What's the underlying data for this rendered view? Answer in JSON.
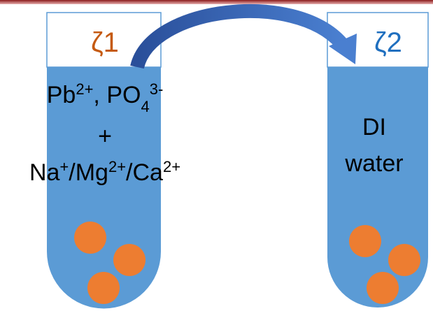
{
  "left_tube": {
    "label": "ζ1",
    "label_color": "#c55a11",
    "lines": [
      [
        {
          "text": "Pb"
        },
        {
          "text": "2+",
          "style": "sup"
        },
        {
          "text": ", PO"
        },
        {
          "text": "4",
          "style": "sub"
        },
        {
          "text": "3-",
          "style": "sup"
        }
      ],
      [
        {
          "text": "+"
        }
      ],
      [
        {
          "text": "Na"
        },
        {
          "text": "+",
          "style": "sup"
        },
        {
          "text": "/Mg"
        },
        {
          "text": "2+",
          "style": "sup"
        },
        {
          "text": "/Ca"
        },
        {
          "text": "2+",
          "style": "sup"
        }
      ]
    ]
  },
  "right_tube": {
    "label": "ζ2",
    "label_color": "#1f6fbf",
    "lines": [
      [
        {
          "text": "DI"
        }
      ],
      [
        {
          "text": "water"
        }
      ]
    ]
  }
}
